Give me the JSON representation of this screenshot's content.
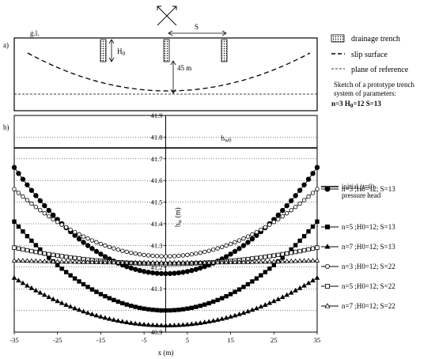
{
  "panel_a": {
    "label": "a)",
    "ground_label": "g.l.",
    "s_label": "S",
    "h0_label": "H",
    "h0_sub": "0",
    "depth_label": "45 m",
    "legend": {
      "trench": "drainage trench",
      "slip": "slip surface",
      "reference": "plane of reference"
    },
    "sketch_caption": [
      "Sketch of a prototype trench",
      "system of parameters:"
    ],
    "params": {
      "n": "n=3",
      "h": "H",
      "h_sub": "0",
      "h_rest": "=12",
      "s": "S=13"
    }
  },
  "panel_b": {
    "label": "b)"
  },
  "chart_data": {
    "type": "line",
    "xlabel": "x (m)",
    "ylabel": "h",
    "ylabel_sub": "w",
    "ylabel_unit": " (m)",
    "xlim": [
      -35,
      35
    ],
    "ylim": [
      40.9,
      41.9
    ],
    "x_ticks": [
      -35,
      -25,
      -15,
      -5,
      5,
      15,
      25,
      35
    ],
    "x_tick_labels": [
      "-35",
      "-25",
      "-15",
      "-5",
      "5",
      "15",
      "25",
      "35"
    ],
    "y_ticks": [
      40.9,
      41.0,
      41.1,
      41.2,
      41.3,
      41.4,
      41.5,
      41.6,
      41.7,
      41.8,
      41.9
    ],
    "y_tick_labels": [
      "40.9",
      "41",
      "41.1",
      "41.2",
      "41.3",
      "41.4",
      "41.5",
      "41.6",
      "41.7",
      "41.8",
      "41.9"
    ],
    "grid": "horizontal dotted",
    "legend_placement": "right",
    "annotation": {
      "text": "h",
      "sub": "w0",
      "x": 0,
      "y": 41.77
    },
    "series": [
      {
        "name": "initial (t=0) pressure head",
        "name_lines": [
          "initial (t=0)",
          "pressure head"
        ],
        "marker": "none",
        "shape": "flat",
        "value": 41.75
      },
      {
        "name": "n=3 ;H0=12; S=13",
        "marker": "filled-circle",
        "shape": "parabola",
        "min": 41.17,
        "edge": 41.66
      },
      {
        "name": "n=5 ;H0=12; S=13",
        "marker": "filled-square",
        "shape": "parabola",
        "min": 41.0,
        "edge": 41.41
      },
      {
        "name": "n=7 ;H0=12; S=13",
        "marker": "filled-triangle",
        "shape": "parabola",
        "min": 40.93,
        "edge": 41.15
      },
      {
        "name": "n=3 ;H0=12; S=22",
        "marker": "open-circle",
        "shape": "parabola",
        "min": 41.25,
        "edge": 41.56
      },
      {
        "name": "n=5 ;H0=12; S=22",
        "marker": "open-square",
        "shape": "parabola",
        "min": 41.215,
        "edge": 41.29
      },
      {
        "name": "n=7 ;H0=12; S=22",
        "marker": "open-triangle",
        "shape": "parabola",
        "min": 41.22,
        "edge": 41.23
      }
    ]
  }
}
